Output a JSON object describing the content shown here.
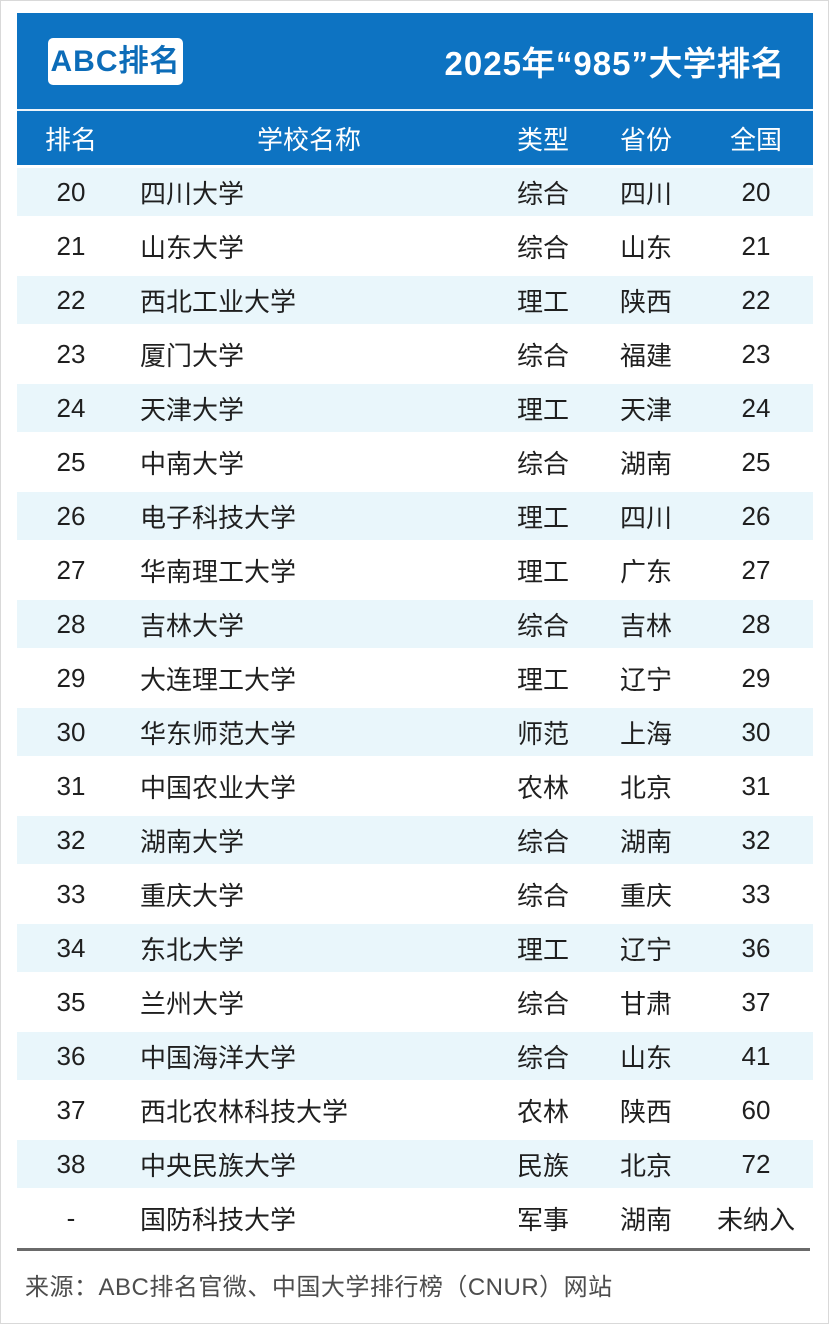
{
  "header": {
    "logo": "ABC排名",
    "title": "2025年“985”大学排名"
  },
  "table": {
    "columns": [
      "排名",
      "学校名称",
      "类型",
      "省份",
      "全国"
    ],
    "rows": [
      {
        "rank": "20",
        "school": "四川大学",
        "type": "综合",
        "province": "四川",
        "national": "20"
      },
      {
        "rank": "21",
        "school": "山东大学",
        "type": "综合",
        "province": "山东",
        "national": "21"
      },
      {
        "rank": "22",
        "school": "西北工业大学",
        "type": "理工",
        "province": "陕西",
        "national": "22"
      },
      {
        "rank": "23",
        "school": "厦门大学",
        "type": "综合",
        "province": "福建",
        "national": "23"
      },
      {
        "rank": "24",
        "school": "天津大学",
        "type": "理工",
        "province": "天津",
        "national": "24"
      },
      {
        "rank": "25",
        "school": "中南大学",
        "type": "综合",
        "province": "湖南",
        "national": "25"
      },
      {
        "rank": "26",
        "school": "电子科技大学",
        "type": "理工",
        "province": "四川",
        "national": "26"
      },
      {
        "rank": "27",
        "school": "华南理工大学",
        "type": "理工",
        "province": "广东",
        "national": "27"
      },
      {
        "rank": "28",
        "school": "吉林大学",
        "type": "综合",
        "province": "吉林",
        "national": "28"
      },
      {
        "rank": "29",
        "school": "大连理工大学",
        "type": "理工",
        "province": "辽宁",
        "national": "29"
      },
      {
        "rank": "30",
        "school": "华东师范大学",
        "type": "师范",
        "province": "上海",
        "national": "30"
      },
      {
        "rank": "31",
        "school": "中国农业大学",
        "type": "农林",
        "province": "北京",
        "national": "31"
      },
      {
        "rank": "32",
        "school": "湖南大学",
        "type": "综合",
        "province": "湖南",
        "national": "32"
      },
      {
        "rank": "33",
        "school": "重庆大学",
        "type": "综合",
        "province": "重庆",
        "national": "33"
      },
      {
        "rank": "34",
        "school": "东北大学",
        "type": "理工",
        "province": "辽宁",
        "national": "36"
      },
      {
        "rank": "35",
        "school": "兰州大学",
        "type": "综合",
        "province": "甘肃",
        "national": "37"
      },
      {
        "rank": "36",
        "school": "中国海洋大学",
        "type": "综合",
        "province": "山东",
        "national": "41"
      },
      {
        "rank": "37",
        "school": "西北农林科技大学",
        "type": "农林",
        "province": "陕西",
        "national": "60"
      },
      {
        "rank": "38",
        "school": "中央民族大学",
        "type": "民族",
        "province": "北京",
        "national": "72"
      },
      {
        "rank": "-",
        "school": "国防科技大学",
        "type": "军事",
        "province": "湖南",
        "national": "未纳入"
      }
    ]
  },
  "footer": {
    "source": "来源：ABC排名官微、中国大学排行榜（CNUR）网站"
  },
  "colors": {
    "header_blue": "#0d73c2",
    "logo_text_blue": "#0c6cb8",
    "stripe_bg": "#e9f6fb",
    "body_text": "#1f1f1f",
    "footer_text": "#4d4d4d",
    "divider_gray": "#6a6a6a"
  }
}
